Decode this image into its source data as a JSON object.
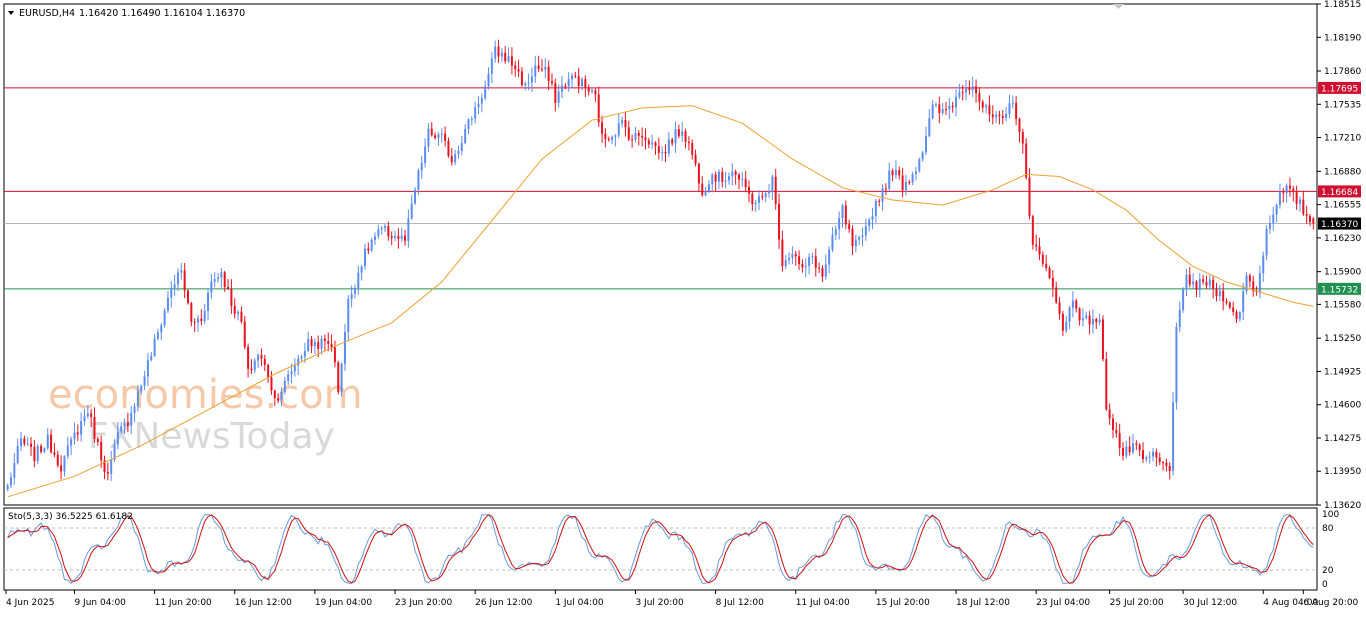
{
  "header": {
    "symbol_text": "EURUSD,H4",
    "ohlc_text": "1.16420 1.16490 1.16104 1.16370"
  },
  "watermark": {
    "line1": "economies.com",
    "line2": "FXNewsToday"
  },
  "colors": {
    "bull": "#5b8def",
    "bear": "#e8131e",
    "ma": "#f0a030",
    "resistance": "#d01030",
    "support": "#209050",
    "current_price_line": "#b8b8b8",
    "stoch_k": "#6a9ae0",
    "stoch_d": "#d01010"
  },
  "chart_data": [
    {
      "type": "candlestick",
      "symbol": "EURUSD",
      "timeframe": "H4",
      "ylim": [
        1.1362,
        1.18515
      ],
      "y_ticks": [
        "1.18515",
        "1.18190",
        "1.17860",
        "1.17535",
        "1.17210",
        "1.16880",
        "1.16555",
        "1.16230",
        "1.15900",
        "1.15580",
        "1.15250",
        "1.14925",
        "1.14600",
        "1.14275",
        "1.13950",
        "1.13620"
      ],
      "x_ticks": [
        "4 Jun 2025",
        "9 Jun 04:00",
        "11 Jun 20:00",
        "16 Jun 12:00",
        "19 Jun 04:00",
        "23 Jun 20:00",
        "26 Jun 12:00",
        "1 Jul 04:00",
        "3 Jul 20:00",
        "8 Jul 12:00",
        "11 Jul 04:00",
        "15 Jul 20:00",
        "18 Jul 12:00",
        "23 Jul 04:00",
        "25 Jul 20:00",
        "30 Jul 12:00",
        "4 Aug 04:00",
        "6 Aug 20:00"
      ],
      "last_price": "1.16370",
      "horizontal_levels": [
        {
          "label": "1.17695",
          "value": 1.17695,
          "kind": "resistance"
        },
        {
          "label": "1.16684",
          "value": 1.16684,
          "kind": "resistance"
        },
        {
          "label": "1.15732",
          "value": 1.15732,
          "kind": "support"
        }
      ],
      "path_points": [
        [
          0,
          1.138
        ],
        [
          4,
          1.1425
        ],
        [
          8,
          1.141
        ],
        [
          12,
          1.1425
        ],
        [
          16,
          1.14
        ],
        [
          20,
          1.143
        ],
        [
          24,
          1.1455
        ],
        [
          27,
          1.142
        ],
        [
          30,
          1.139
        ],
        [
          33,
          1.143
        ],
        [
          36,
          1.1445
        ],
        [
          40,
          1.148
        ],
        [
          45,
          1.153
        ],
        [
          49,
          1.1575
        ],
        [
          52,
          1.159
        ],
        [
          55,
          1.154
        ],
        [
          58,
          1.1545
        ],
        [
          61,
          1.158
        ],
        [
          64,
          1.159
        ],
        [
          67,
          1.156
        ],
        [
          70,
          1.154
        ],
        [
          72,
          1.149
        ],
        [
          75,
          1.151
        ],
        [
          78,
          1.149
        ],
        [
          80,
          1.1465
        ],
        [
          83,
          1.148
        ],
        [
          86,
          1.15
        ],
        [
          90,
          1.152
        ],
        [
          94,
          1.152
        ],
        [
          97,
          1.152
        ],
        [
          99,
          1.1475
        ],
        [
          102,
          1.156
        ],
        [
          106,
          1.16
        ],
        [
          109,
          1.162
        ],
        [
          112,
          1.163
        ],
        [
          116,
          1.1625
        ],
        [
          119,
          1.162
        ],
        [
          122,
          1.167
        ],
        [
          126,
          1.1725
        ],
        [
          130,
          1.172
        ],
        [
          133,
          1.17
        ],
        [
          136,
          1.172
        ],
        [
          140,
          1.175
        ],
        [
          143,
          1.177
        ],
        [
          146,
          1.1805
        ],
        [
          149,
          1.18
        ],
        [
          152,
          1.179
        ],
        [
          155,
          1.177
        ],
        [
          158,
          1.179
        ],
        [
          161,
          1.1785
        ],
        [
          164,
          1.176
        ],
        [
          167,
          1.1775
        ],
        [
          170,
          1.178
        ],
        [
          173,
          1.177
        ],
        [
          176,
          1.176
        ],
        [
          178,
          1.172
        ],
        [
          181,
          1.1725
        ],
        [
          184,
          1.1735
        ],
        [
          187,
          1.172
        ],
        [
          190,
          1.1725
        ],
        [
          193,
          1.1715
        ],
        [
          196,
          1.1705
        ],
        [
          199,
          1.172
        ],
        [
          202,
          1.173
        ],
        [
          205,
          1.1705
        ],
        [
          208,
          1.167
        ],
        [
          211,
          1.1685
        ],
        [
          214,
          1.168
        ],
        [
          217,
          1.169
        ],
        [
          220,
          1.1675
        ],
        [
          223,
          1.166
        ],
        [
          226,
          1.166
        ],
        [
          229,
          1.168
        ],
        [
          232,
          1.16
        ],
        [
          235,
          1.161
        ],
        [
          238,
          1.159
        ],
        [
          241,
          1.1605
        ],
        [
          244,
          1.1585
        ],
        [
          247,
          1.162
        ],
        [
          250,
          1.165
        ],
        [
          253,
          1.1615
        ],
        [
          256,
          1.162
        ],
        [
          259,
          1.165
        ],
        [
          262,
          1.167
        ],
        [
          265,
          1.169
        ],
        [
          268,
          1.1675
        ],
        [
          271,
          1.1685
        ],
        [
          274,
          1.171
        ],
        [
          277,
          1.175
        ],
        [
          280,
          1.1745
        ],
        [
          283,
          1.1755
        ],
        [
          286,
          1.177
        ],
        [
          289,
          1.1775
        ],
        [
          292,
          1.175
        ],
        [
          295,
          1.174
        ],
        [
          298,
          1.1735
        ],
        [
          301,
          1.176
        ],
        [
          304,
          1.171
        ],
        [
          307,
          1.162
        ],
        [
          310,
          1.1595
        ],
        [
          313,
          1.158
        ],
        [
          316,
          1.153
        ],
        [
          319,
          1.1565
        ],
        [
          322,
          1.154
        ],
        [
          325,
          1.1545
        ],
        [
          327,
          1.154
        ],
        [
          329,
          1.146
        ],
        [
          331,
          1.144
        ],
        [
          334,
          1.141
        ],
        [
          337,
          1.142
        ],
        [
          340,
          1.1405
        ],
        [
          343,
          1.141
        ],
        [
          346,
          1.14
        ],
        [
          348,
          1.14
        ],
        [
          350,
          1.153
        ],
        [
          353,
          1.1585
        ],
        [
          356,
          1.1575
        ],
        [
          359,
          1.158
        ],
        [
          362,
          1.157
        ],
        [
          365,
          1.1565
        ],
        [
          368,
          1.154
        ],
        [
          371,
          1.1585
        ],
        [
          374,
          1.157
        ],
        [
          377,
          1.163
        ],
        [
          380,
          1.166
        ],
        [
          383,
          1.167
        ],
        [
          386,
          1.166
        ],
        [
          389,
          1.1645
        ],
        [
          391,
          1.1637
        ]
      ],
      "moving_average": [
        [
          0,
          1.137
        ],
        [
          20,
          1.139
        ],
        [
          40,
          1.142
        ],
        [
          60,
          1.1455
        ],
        [
          80,
          1.149
        ],
        [
          100,
          1.152
        ],
        [
          115,
          1.154
        ],
        [
          130,
          1.158
        ],
        [
          145,
          1.164
        ],
        [
          160,
          1.17
        ],
        [
          175,
          1.1738
        ],
        [
          190,
          1.175
        ],
        [
          205,
          1.1752
        ],
        [
          220,
          1.1735
        ],
        [
          235,
          1.17
        ],
        [
          250,
          1.1672
        ],
        [
          265,
          1.166
        ],
        [
          280,
          1.1655
        ],
        [
          295,
          1.167
        ],
        [
          305,
          1.1685
        ],
        [
          315,
          1.1683
        ],
        [
          325,
          1.167
        ],
        [
          335,
          1.165
        ],
        [
          345,
          1.162
        ],
        [
          355,
          1.1595
        ],
        [
          365,
          1.158
        ],
        [
          375,
          1.157
        ],
        [
          385,
          1.156
        ],
        [
          391,
          1.1556
        ]
      ]
    },
    {
      "type": "line",
      "indicator_text": "Sto(5,3,3) 36.5225 61.6182",
      "ylim": [
        0,
        100
      ],
      "y_ticks": [
        "100",
        "80",
        "20",
        "0"
      ],
      "levels": [
        80,
        20
      ]
    }
  ]
}
